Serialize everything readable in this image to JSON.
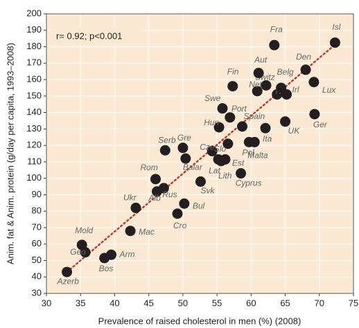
{
  "chart_data": {
    "type": "scatter",
    "annotation": "r= 0.92; p<0.001",
    "x_label": "Prevalence of raised cholesterol in men (%) (2008)",
    "y_label": "Anim. fat & Anim. protein (g/day per capita, 1993–2008)",
    "xlim": [
      30,
      75
    ],
    "xticks": [
      30,
      35,
      40,
      45,
      50,
      55,
      60,
      65,
      70,
      75
    ],
    "ylim": [
      30,
      200
    ],
    "yticks": [
      30,
      40,
      50,
      60,
      70,
      80,
      90,
      100,
      110,
      120,
      130,
      140,
      150,
      160,
      170,
      180,
      190,
      200
    ],
    "grid": true,
    "color": "#231f20",
    "trend_color": "#c0392b",
    "trendline": {
      "x": [
        33,
        72.5
      ],
      "y": [
        43,
        182
      ]
    },
    "labels": [
      "Azerb",
      "Geo",
      "Mold",
      "Bos",
      "Arm",
      "Mac",
      "Ukr",
      "Rom",
      "Alb",
      "Rus",
      "Serb",
      "Gre",
      "Balar",
      "Cro",
      "Bul",
      "Svk",
      "Cze",
      "Lat",
      "Est",
      "Lith",
      "Slo",
      "Hun",
      "Port",
      "Swe",
      "Fin",
      "Spain",
      "Cyprus",
      "Pol",
      "Malta",
      "Ita",
      "UK",
      "Neth",
      "Switz",
      "Aut",
      "Nor",
      "Irl",
      "Belg",
      "Fra",
      "Den",
      "Lux",
      "Ger",
      "Isl"
    ],
    "x": [
      33,
      35.7,
      35.2,
      38.5,
      39.5,
      42.3,
      43.1,
      46,
      46.2,
      47.2,
      47.4,
      50,
      50.4,
      49.2,
      50.2,
      52.6,
      54.3,
      55.2,
      56.2,
      55.6,
      56.6,
      55.3,
      56.9,
      55.8,
      57.3,
      58.7,
      58.5,
      59.7,
      60.5,
      62.1,
      65,
      60.9,
      62.2,
      61.1,
      63.8,
      65.2,
      64.4,
      63.4,
      68,
      69.2,
      69.3,
      72.3
    ],
    "y": [
      43,
      55,
      59.5,
      51.5,
      53.5,
      68,
      82,
      99.5,
      92,
      94,
      117,
      118.5,
      112,
      78.5,
      84.6,
      98,
      116.5,
      111.5,
      111.5,
      110.5,
      121,
      131,
      137,
      142.5,
      156,
      131.5,
      103,
      122,
      122,
      130.5,
      134.5,
      153,
      156.5,
      164,
      151,
      151,
      155,
      181,
      166,
      158.5,
      139,
      182.5
    ]
  }
}
